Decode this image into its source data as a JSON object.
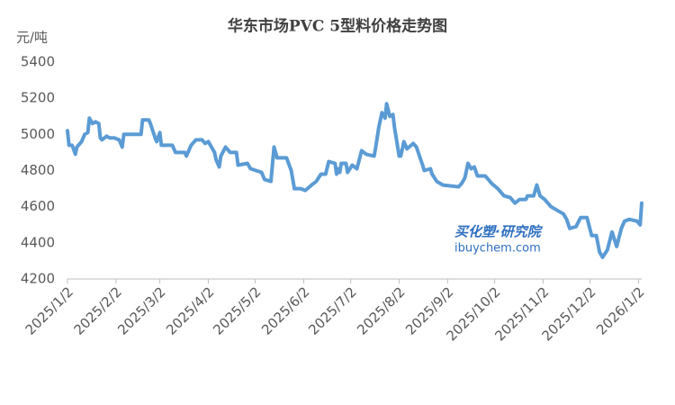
{
  "chart_data": {
    "type": "line",
    "title": "华东市场PVC 5型料价格走势图",
    "y_label": "元/吨",
    "annotations": [
      "买化塑·研究院",
      "ibuychem.com"
    ],
    "color": "#5b9bd5",
    "x": [
      "2025/1/2",
      "2025/1/3",
      "2025/1/5",
      "2025/1/7",
      "2025/1/8",
      "2025/1/11",
      "2025/1/13",
      "2025/1/15",
      "2025/1/16",
      "2025/1/18",
      "2025/1/20",
      "2025/1/22",
      "2025/1/23",
      "2025/1/24",
      "2025/1/27",
      "2025/1/29",
      "2025/2/1",
      "2025/2/4",
      "2025/2/6",
      "2025/2/7",
      "2025/2/18",
      "2025/2/19",
      "2025/2/23",
      "2025/2/24",
      "2025/2/27",
      "2025/2/28",
      "2025/3/2",
      "2025/3/3",
      "2025/3/10",
      "2025/3/12",
      "2025/3/18",
      "2025/3/19",
      "2025/3/22",
      "2025/3/25",
      "2025/3/29",
      "2025/3/31",
      "2025/4/2",
      "2025/4/6",
      "2025/4/7",
      "2025/4/9",
      "2025/4/10",
      "2025/4/13",
      "2025/4/16",
      "2025/4/20",
      "2025/4/21",
      "2025/4/27",
      "2025/4/29",
      "2025/5/6",
      "2025/5/8",
      "2025/5/12",
      "2025/5/14",
      "2025/5/16",
      "2025/5/22",
      "2025/5/25",
      "2025/5/27",
      "2025/5/31",
      "2025/6/3",
      "2025/6/7",
      "2025/6/10",
      "2025/6/13",
      "2025/6/16",
      "2025/6/18",
      "2025/6/22",
      "2025/6/23",
      "2025/6/24",
      "2025/6/25",
      "2025/6/26",
      "2025/6/29",
      "2025/6/30",
      "2025/7/3",
      "2025/7/6",
      "2025/7/9",
      "2025/7/12",
      "2025/7/17",
      "2025/7/18",
      "2025/7/20",
      "2025/7/22",
      "2025/7/24",
      "2025/7/25",
      "2025/7/27",
      "2025/7/29",
      "2025/7/30",
      "2025/8/2",
      "2025/8/3",
      "2025/8/5",
      "2025/8/7",
      "2025/8/11",
      "2025/8/13",
      "2025/8/15",
      "2025/8/17",
      "2025/8/18",
      "2025/8/22",
      "2025/8/23",
      "2025/8/26",
      "2025/8/30",
      "2025/9/9",
      "2025/9/11",
      "2025/9/13",
      "2025/9/15",
      "2025/9/17",
      "2025/9/19",
      "2025/9/21",
      "2025/9/26",
      "2025/9/30",
      "2025/10/4",
      "2025/10/8",
      "2025/10/12",
      "2025/10/15",
      "2025/10/18",
      "2025/10/22",
      "2025/10/23",
      "2025/10/27",
      "2025/10/29",
      "2025/10/31",
      "2025/11/3",
      "2025/11/7",
      "2025/11/13",
      "2025/11/15",
      "2025/11/17",
      "2025/11/19",
      "2025/11/23",
      "2025/11/26",
      "2025/11/30",
      "2025/12/3",
      "2025/12/6",
      "2025/12/8",
      "2025/12/10",
      "2025/12/13",
      "2025/12/16",
      "2025/12/19",
      "2025/12/22",
      "2025/12/24",
      "2025/12/27",
      "2026/1/1",
      "2026/1/3",
      "2026/1/4"
    ],
    "values": [
      5020,
      4940,
      4940,
      4890,
      4930,
      4960,
      5000,
      5010,
      5090,
      5060,
      5070,
      5060,
      4980,
      4970,
      4990,
      4980,
      4980,
      4970,
      4930,
      5000,
      5000,
      5080,
      5080,
      5060,
      4980,
      4960,
      5010,
      4940,
      4940,
      4900,
      4900,
      4880,
      4940,
      4970,
      4970,
      4950,
      4960,
      4900,
      4860,
      4820,
      4880,
      4930,
      4900,
      4900,
      4830,
      4840,
      4810,
      4790,
      4750,
      4740,
      4930,
      4870,
      4870,
      4800,
      4700,
      4700,
      4690,
      4720,
      4740,
      4780,
      4780,
      4850,
      4840,
      4780,
      4810,
      4790,
      4840,
      4840,
      4790,
      4830,
      4810,
      4910,
      4890,
      4880,
      4930,
      5040,
      5120,
      5090,
      5170,
      5100,
      5110,
      5040,
      4880,
      4880,
      4960,
      4920,
      4950,
      4930,
      4880,
      4830,
      4800,
      4810,
      4780,
      4740,
      4720,
      4710,
      4730,
      4760,
      4840,
      4810,
      4820,
      4770,
      4770,
      4730,
      4700,
      4660,
      4650,
      4620,
      4640,
      4640,
      4660,
      4660,
      4720,
      4660,
      4640,
      4600,
      4570,
      4560,
      4530,
      4480,
      4490,
      4540,
      4540,
      4440,
      4440,
      4350,
      4320,
      4360,
      4460,
      4380,
      4480,
      4520,
      4530,
      4520,
      4500,
      4620
    ],
    "xlim": [
      "2025/1/2",
      "2026/1/4"
    ],
    "xticks": [
      "2025/1/2",
      "2025/2/2",
      "2025/3/2",
      "2025/4/2",
      "2025/5/2",
      "2025/6/2",
      "2025/7/2",
      "2025/8/2",
      "2025/9/2",
      "2025/10/2",
      "2025/11/2",
      "2025/12/2",
      "2026/1/2"
    ],
    "ylim": [
      4200,
      5400
    ],
    "yticks": [
      4200,
      4400,
      4600,
      4800,
      5000,
      5200,
      5400
    ],
    "grid": false
  }
}
